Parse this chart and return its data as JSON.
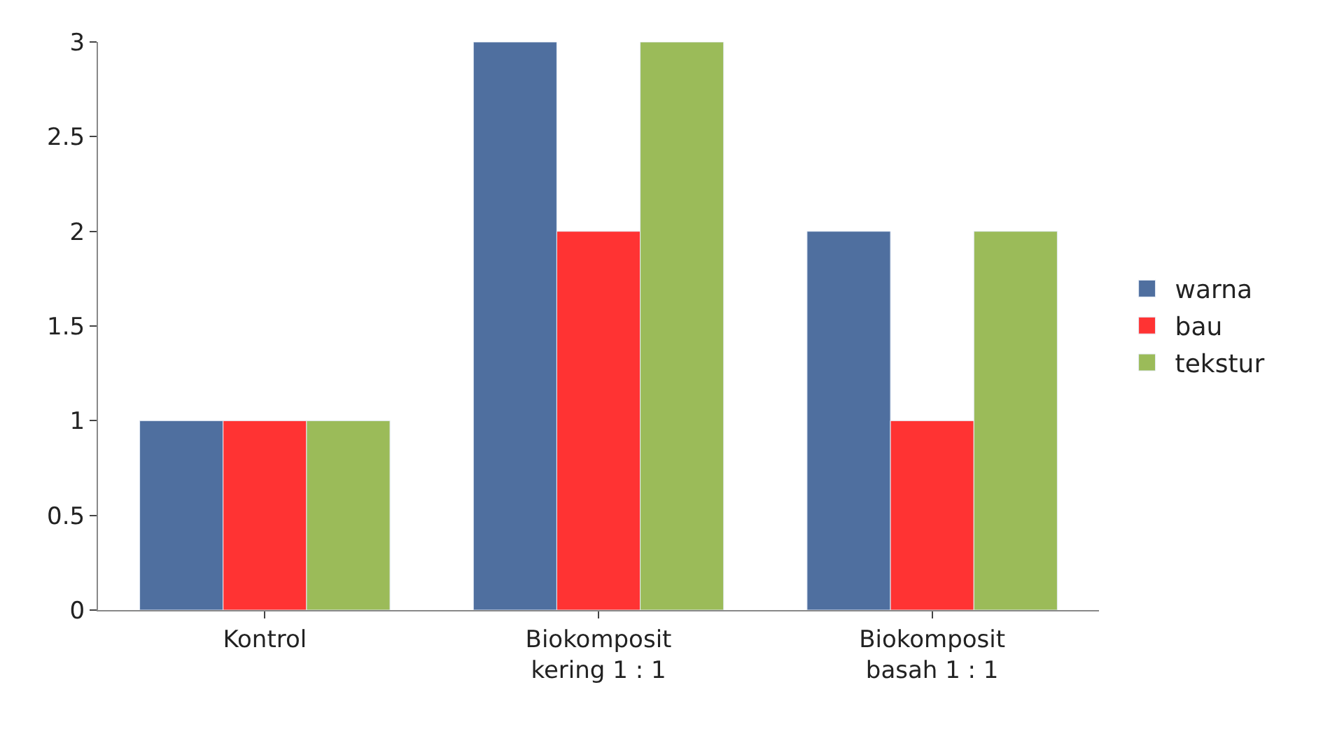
{
  "chart_data": {
    "type": "bar",
    "categories": [
      "Kontrol",
      "Biokomposit kering 1 : 1",
      "Biokomposit basah 1 : 1"
    ],
    "series": [
      {
        "name": "warna",
        "color": "#4f6f9f",
        "values": [
          1,
          3,
          2
        ]
      },
      {
        "name": "bau",
        "color": "#ff3333",
        "values": [
          1,
          2,
          1
        ]
      },
      {
        "name": "tekstur",
        "color": "#9bbb59",
        "values": [
          1,
          3,
          2
        ]
      }
    ],
    "ylim": [
      0,
      3
    ],
    "yticks": [
      0,
      0.5,
      1,
      1.5,
      2,
      2.5,
      3
    ],
    "legend": "right"
  }
}
